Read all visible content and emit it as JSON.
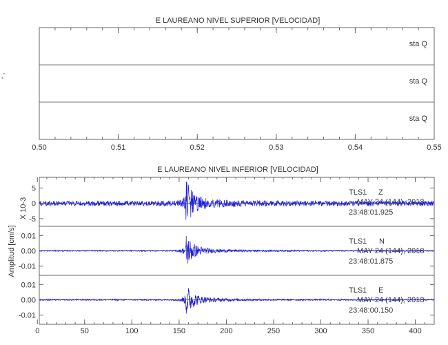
{
  "chart_data": [
    {
      "type": "line",
      "title": "E LAUREANO NIVEL SUPERIOR [VELOCIDAD]",
      "xlim": [
        0.5,
        0.55
      ],
      "xticks": [
        "0.50",
        "0.51",
        "0.52",
        "0.53",
        "0.54",
        "0.55"
      ],
      "left_axis_label": "- ,",
      "channels": [
        {
          "label": "sta Q",
          "values": []
        },
        {
          "label": "sta Q",
          "values": []
        },
        {
          "label": "sta Q",
          "values": []
        }
      ]
    },
    {
      "type": "line",
      "title": "E LAUREANO NIVEL INFERIOR [VELOCIDAD]",
      "xlim": [
        2,
        420
      ],
      "xticks": [
        "0",
        "50",
        "100",
        "150",
        "200",
        "250",
        "300",
        "350",
        "400"
      ],
      "ylabel": "Amplitud [cm/s]",
      "exponent_label": "X 10-3",
      "event_time": 157,
      "channels": [
        {
          "station": "TLS1",
          "component": "Z",
          "date": "MAY 24 (144), 2018",
          "time": "23:48:01.925",
          "ylim": [
            -7.5,
            8.5
          ],
          "yticks": [
            "5",
            "0",
            "-5"
          ],
          "ytick_values": [
            5,
            0,
            -5
          ],
          "noise_amplitude": 0.9,
          "peak_amplitude": 8.5
        },
        {
          "station": "TLS1",
          "component": "N",
          "date": "MAY 24 (144), 2018",
          "time": "23:48:01.875",
          "ylim": [
            -0.016,
            0.016
          ],
          "yticks": [
            "0.01",
            "0.00",
            "-0.01"
          ],
          "ytick_values": [
            0.01,
            0,
            -0.01
          ],
          "noise_amplitude": 0.0004,
          "peak_amplitude": 0.014
        },
        {
          "station": "TLS1",
          "component": "E",
          "date": "MAY 24 (144), 2018",
          "time": "23:48:00.150",
          "ylim": [
            -0.016,
            0.016
          ],
          "yticks": [
            "0.01",
            "0.00",
            "-0.01"
          ],
          "ytick_values": [
            0.01,
            0,
            -0.01
          ],
          "noise_amplitude": 0.0005,
          "peak_amplitude": 0.013
        }
      ],
      "trace_color": "#1f1fd8"
    }
  ]
}
